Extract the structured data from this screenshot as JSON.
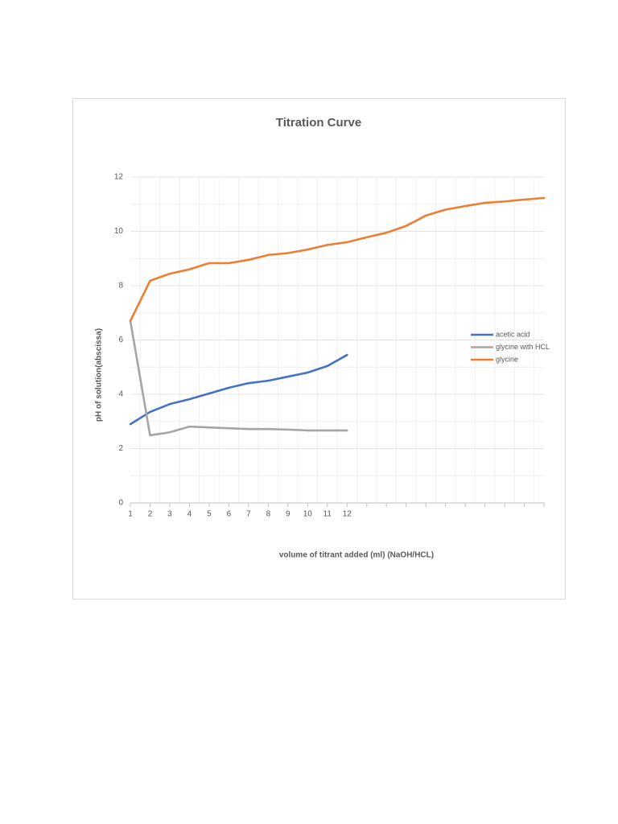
{
  "chart_data": {
    "type": "line",
    "title": "Titration Curve",
    "x_label": "volume of titrant added (ml) (NaOH/HCL)",
    "y_label": "pH of solution(abscissa)",
    "categories": [
      1,
      2,
      3,
      4,
      5,
      6,
      7,
      8,
      9,
      10,
      11,
      12,
      null,
      null,
      null,
      null,
      null,
      null,
      null,
      null,
      null,
      null
    ],
    "series": [
      {
        "name": "acetic acid",
        "color": "#4472c4",
        "values": [
          2.9,
          3.35,
          3.64,
          3.82,
          4.03,
          4.24,
          4.41,
          4.5,
          4.65,
          4.8,
          5.04,
          5.45,
          null,
          null,
          null,
          null,
          null,
          null,
          null,
          null,
          null,
          null
        ]
      },
      {
        "name": "glycine with HCL",
        "color": "#a5a5a5",
        "values": [
          6.7,
          2.49,
          2.6,
          2.81,
          2.78,
          2.75,
          2.72,
          2.72,
          2.7,
          2.67,
          2.67,
          2.67,
          null,
          null,
          null,
          null,
          null,
          null,
          null,
          null,
          null,
          null
        ]
      },
      {
        "name": "glycine",
        "color": "#ed7d31",
        "values": [
          6.7,
          8.18,
          8.44,
          8.6,
          8.83,
          8.83,
          8.95,
          9.13,
          9.2,
          9.33,
          9.5,
          9.6,
          9.78,
          9.95,
          10.2,
          10.58,
          10.8,
          10.93,
          11.05,
          11.1,
          11.17,
          11.23
        ]
      }
    ],
    "ylim": [
      0,
      12
    ],
    "yticks": [
      0,
      2,
      4,
      6,
      8,
      10,
      12
    ],
    "minor_yticks": [
      1,
      3,
      5,
      7,
      9,
      11
    ],
    "grid": true,
    "legend": "right"
  }
}
